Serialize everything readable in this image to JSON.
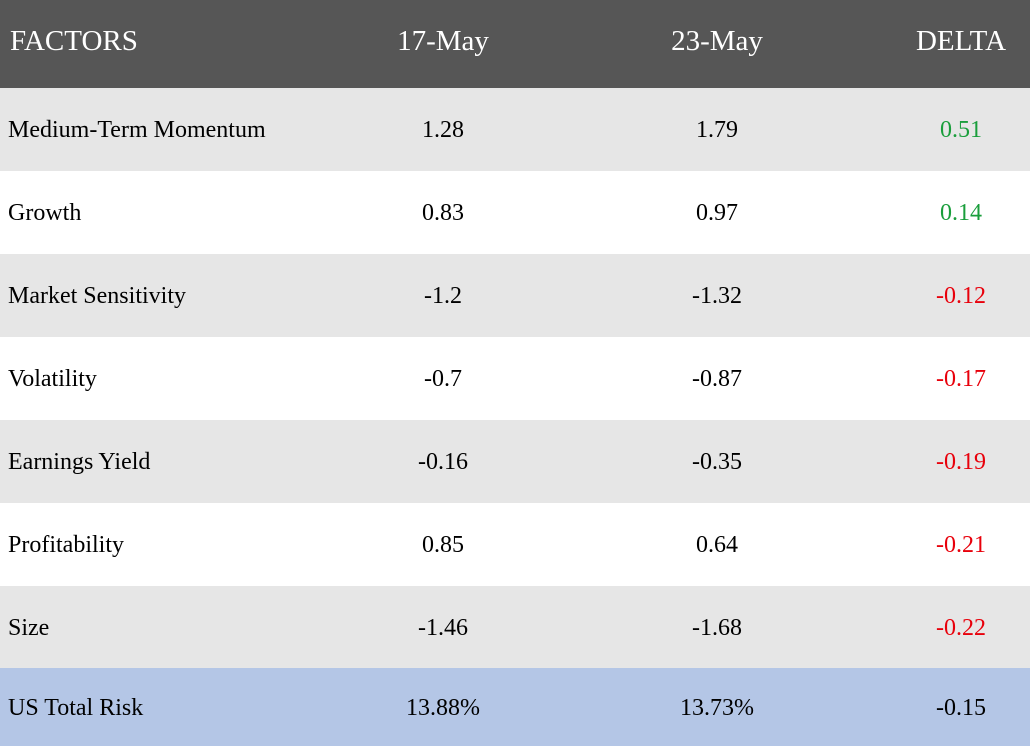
{
  "chart_data": {
    "type": "table",
    "columns": [
      "FACTORS",
      "17-May",
      "23-May",
      "DELTA"
    ],
    "rows": [
      {
        "factor": "Medium-Term Momentum",
        "may17": "1.28",
        "may23": "1.79",
        "delta": "0.51"
      },
      {
        "factor": "Growth",
        "may17": "0.83",
        "may23": "0.97",
        "delta": "0.14"
      },
      {
        "factor": "Market Sensitivity",
        "may17": "-1.2",
        "may23": "-1.32",
        "delta": "-0.12"
      },
      {
        "factor": "Volatility",
        "may17": "-0.7",
        "may23": "-0.87",
        "delta": "-0.17"
      },
      {
        "factor": "Earnings Yield",
        "may17": "-0.16",
        "may23": "-0.35",
        "delta": "-0.19"
      },
      {
        "factor": "Profitability",
        "may17": "0.85",
        "may23": "0.64",
        "delta": "-0.21"
      },
      {
        "factor": "Size",
        "may17": "-1.46",
        "may23": "-1.68",
        "delta": "-0.22"
      }
    ],
    "total": {
      "factor": "US Total Risk",
      "may17": "13.88%",
      "may23": "13.73%",
      "delta": "-0.15"
    }
  },
  "colors": {
    "header_bg": "#565656",
    "row_stripe": "#e6e6e6",
    "row_plain": "#ffffff",
    "total_bg": "#b4c6e6",
    "positive_delta": "#1a9e3c",
    "negative_delta": "#e8000b",
    "total_delta": "#000000"
  }
}
